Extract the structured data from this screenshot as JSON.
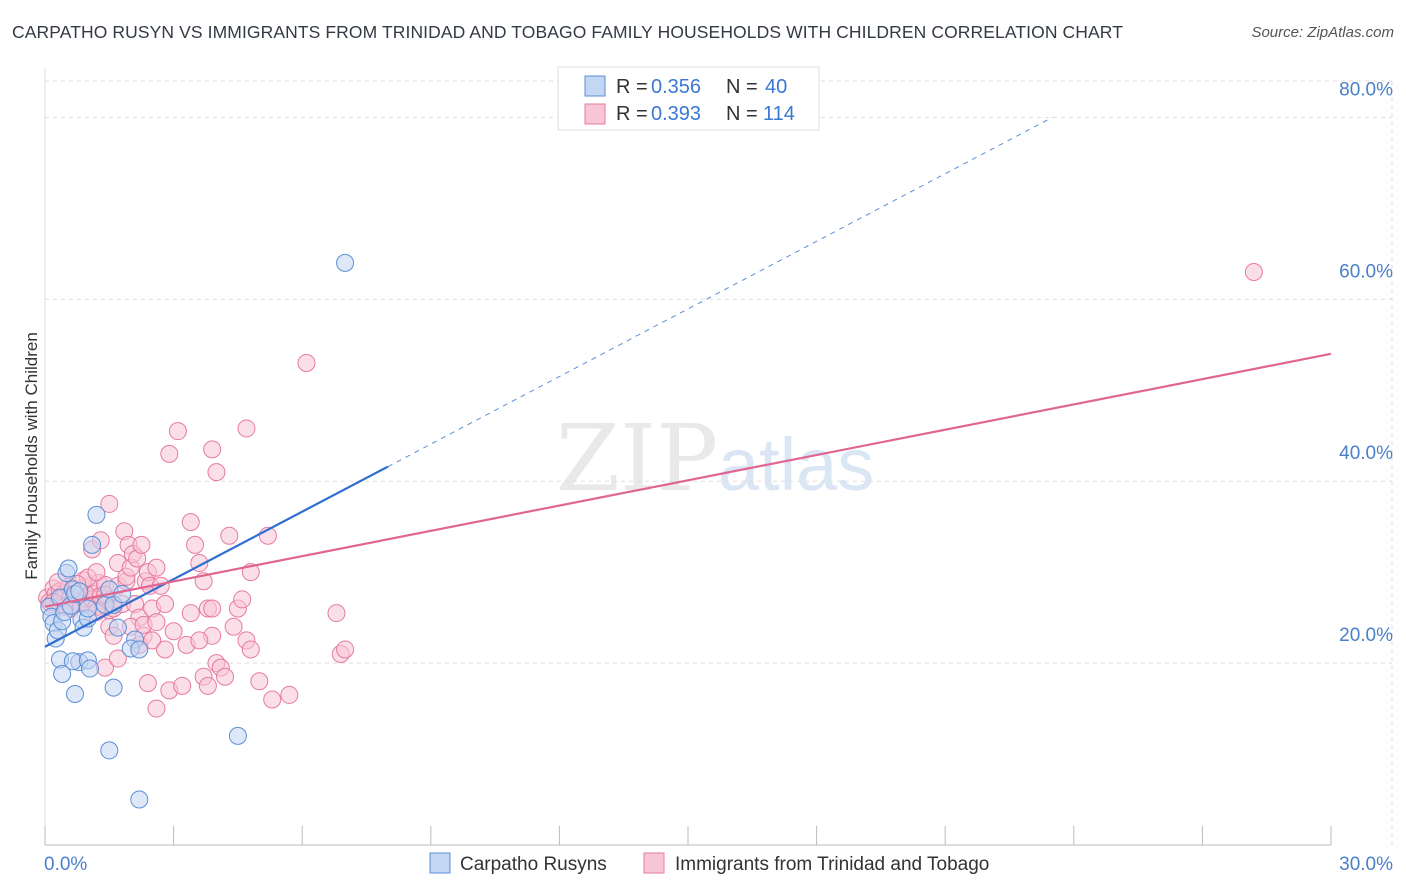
{
  "header": {
    "title": "CARPATHO RUSYN VS IMMIGRANTS FROM TRINIDAD AND TOBAGO FAMILY HOUSEHOLDS WITH CHILDREN CORRELATION CHART",
    "source": "Source: ZipAtlas.com"
  },
  "watermark": {
    "zip": "ZIP",
    "atlas": "atlas"
  },
  "colors": {
    "blue": "#5b8fd6",
    "blue_fill": "#c3d6f2",
    "blue_line": "#2f6fd0",
    "pink": "#e77aa0",
    "pink_fill": "#f7c5d6",
    "pink_line": "#e06690",
    "tick": "#4a7fc9",
    "grid": "#dddddd"
  },
  "legend": {
    "r_label": "R =",
    "n_label": "N =",
    "rows": [
      {
        "r": "0.356",
        "n": "40",
        "color": "blue"
      },
      {
        "r": "0.393",
        "n": "114",
        "color": "pink"
      }
    ]
  },
  "chart_data": {
    "type": "scatter",
    "title": "CARPATHO RUSYN VS IMMIGRANTS FROM TRINIDAD AND TOBAGO FAMILY HOUSEHOLDS WITH CHILDREN CORRELATION CHART",
    "xlabel": "",
    "ylabel": "Family Households with Children",
    "xlim": [
      0,
      30
    ],
    "ylim": [
      0,
      84
    ],
    "x_tick_labels": [
      "0.0%",
      "30.0%"
    ],
    "y_ticks": [
      20,
      40,
      60,
      80
    ],
    "y_tick_labels": [
      "20.0%",
      "40.0%",
      "60.0%",
      "80.0%"
    ],
    "grid": true,
    "series": [
      {
        "name": "Carpatho Rusyns",
        "color": "blue",
        "r": 0.356,
        "n": 40,
        "trend": {
          "x0": 0,
          "y0": 21.8,
          "x1": 8.0,
          "y1": 41.6,
          "dashed_to_x": 23.5,
          "dashed_to_y": 80
        },
        "points": [
          [
            0.1,
            26.2
          ],
          [
            0.15,
            25.1
          ],
          [
            0.2,
            24.4
          ],
          [
            0.25,
            22.7
          ],
          [
            0.3,
            23.6
          ],
          [
            0.35,
            27.2
          ],
          [
            0.4,
            24.6
          ],
          [
            0.45,
            25.6
          ],
          [
            0.5,
            29.9
          ],
          [
            0.55,
            30.4
          ],
          [
            0.6,
            26.3
          ],
          [
            0.65,
            28.1
          ],
          [
            0.7,
            27.6
          ],
          [
            0.8,
            27.9
          ],
          [
            0.85,
            24.8
          ],
          [
            0.9,
            23.9
          ],
          [
            1.0,
            24.9
          ],
          [
            1.1,
            33.0
          ],
          [
            1.0,
            26.0
          ],
          [
            1.2,
            36.3
          ],
          [
            1.4,
            26.4
          ],
          [
            1.5,
            28.1
          ],
          [
            1.6,
            26.4
          ],
          [
            1.7,
            23.9
          ],
          [
            1.8,
            27.6
          ],
          [
            2.1,
            22.6
          ],
          [
            2.0,
            21.6
          ],
          [
            0.35,
            20.4
          ],
          [
            0.8,
            20.1
          ],
          [
            0.65,
            20.2
          ],
          [
            1.0,
            20.3
          ],
          [
            0.4,
            18.8
          ],
          [
            1.05,
            19.4
          ],
          [
            0.7,
            16.6
          ],
          [
            1.6,
            17.3
          ],
          [
            1.5,
            10.4
          ],
          [
            2.2,
            21.5
          ],
          [
            4.5,
            12.0
          ],
          [
            2.2,
            5.0
          ],
          [
            7.0,
            64.0
          ]
        ]
      },
      {
        "name": "Immigrants from Trinidad and Tobago",
        "color": "pink",
        "r": 0.393,
        "n": 114,
        "trend": {
          "x0": 0,
          "y0": 26.2,
          "x1": 30,
          "y1": 54.0
        },
        "points": [
          [
            0.05,
            27.2
          ],
          [
            0.1,
            26.7
          ],
          [
            0.15,
            26.5
          ],
          [
            0.2,
            28.2
          ],
          [
            0.25,
            27.6
          ],
          [
            0.3,
            26.8
          ],
          [
            0.35,
            27.9
          ],
          [
            0.4,
            27.1
          ],
          [
            0.45,
            27.7
          ],
          [
            0.5,
            26.3
          ],
          [
            0.55,
            28.4
          ],
          [
            0.6,
            27.3
          ],
          [
            0.65,
            26.9
          ],
          [
            0.7,
            28.0
          ],
          [
            0.75,
            27.5
          ],
          [
            0.8,
            26.6
          ],
          [
            0.85,
            27.8
          ],
          [
            0.9,
            28.3
          ],
          [
            0.95,
            27.1
          ],
          [
            1.0,
            26.4
          ],
          [
            1.05,
            28.5
          ],
          [
            1.1,
            27.0
          ],
          [
            1.15,
            27.6
          ],
          [
            1.2,
            26.2
          ],
          [
            1.25,
            28.8
          ],
          [
            1.3,
            27.4
          ],
          [
            1.35,
            26.0
          ],
          [
            1.4,
            28.6
          ],
          [
            1.45,
            27.0
          ],
          [
            1.5,
            25.8
          ],
          [
            0.3,
            28.9
          ],
          [
            0.6,
            26.0
          ],
          [
            0.9,
            29.1
          ],
          [
            1.2,
            25.6
          ],
          [
            0.45,
            26.2
          ],
          [
            1.0,
            29.4
          ],
          [
            0.2,
            26.7
          ],
          [
            0.75,
            28.7
          ],
          [
            1.1,
            32.5
          ],
          [
            1.2,
            30.0
          ],
          [
            1.3,
            33.5
          ],
          [
            1.4,
            27.5
          ],
          [
            1.5,
            24.0
          ],
          [
            1.6,
            26.0
          ],
          [
            1.7,
            28.5
          ],
          [
            1.8,
            26.5
          ],
          [
            1.9,
            29.0
          ],
          [
            1.5,
            37.5
          ],
          [
            1.7,
            31.0
          ],
          [
            1.85,
            34.5
          ],
          [
            1.9,
            29.5
          ],
          [
            1.95,
            33.0
          ],
          [
            2.0,
            30.5
          ],
          [
            2.05,
            32.0
          ],
          [
            2.1,
            26.5
          ],
          [
            2.15,
            31.5
          ],
          [
            2.2,
            25.0
          ],
          [
            2.25,
            33.0
          ],
          [
            2.35,
            29.0
          ],
          [
            2.4,
            30.0
          ],
          [
            2.45,
            28.5
          ],
          [
            2.5,
            26.0
          ],
          [
            2.6,
            30.5
          ],
          [
            2.0,
            24.0
          ],
          [
            2.2,
            22.0
          ],
          [
            2.3,
            23.0
          ],
          [
            1.6,
            23.0
          ],
          [
            1.4,
            19.5
          ],
          [
            1.7,
            20.5
          ],
          [
            2.3,
            24.2
          ],
          [
            2.4,
            17.8
          ],
          [
            2.5,
            22.5
          ],
          [
            2.6,
            24.5
          ],
          [
            2.7,
            28.5
          ],
          [
            2.8,
            26.5
          ],
          [
            2.6,
            15.0
          ],
          [
            2.9,
            17.0
          ],
          [
            2.8,
            21.5
          ],
          [
            3.2,
            17.5
          ],
          [
            3.0,
            23.5
          ],
          [
            3.3,
            22.0
          ],
          [
            3.4,
            25.5
          ],
          [
            2.9,
            43.0
          ],
          [
            3.1,
            45.5
          ],
          [
            3.4,
            35.5
          ],
          [
            3.5,
            33.0
          ],
          [
            3.6,
            31.0
          ],
          [
            3.7,
            29.0
          ],
          [
            3.8,
            26.0
          ],
          [
            3.9,
            26.0
          ],
          [
            3.9,
            23.0
          ],
          [
            4.0,
            20.0
          ],
          [
            3.7,
            18.5
          ],
          [
            3.8,
            17.5
          ],
          [
            3.6,
            22.5
          ],
          [
            4.1,
            19.5
          ],
          [
            4.2,
            18.5
          ],
          [
            4.4,
            24.0
          ],
          [
            4.0,
            41.0
          ],
          [
            4.3,
            34.0
          ],
          [
            4.5,
            26.0
          ],
          [
            4.7,
            22.5
          ],
          [
            4.8,
            21.5
          ],
          [
            4.8,
            30.0
          ],
          [
            5.0,
            18.0
          ],
          [
            4.6,
            27.0
          ],
          [
            3.9,
            43.5
          ],
          [
            4.7,
            45.8
          ],
          [
            5.2,
            34.0
          ],
          [
            5.3,
            16.0
          ],
          [
            5.7,
            16.5
          ],
          [
            6.1,
            53.0
          ],
          [
            6.8,
            25.5
          ],
          [
            6.9,
            21.0
          ],
          [
            7.0,
            21.5
          ],
          [
            28.2,
            63.0
          ]
        ]
      }
    ]
  },
  "bottom_legend": [
    {
      "label": "Carpatho Rusyns",
      "color": "blue"
    },
    {
      "label": "Immigrants from Trinidad and Tobago",
      "color": "pink"
    }
  ]
}
